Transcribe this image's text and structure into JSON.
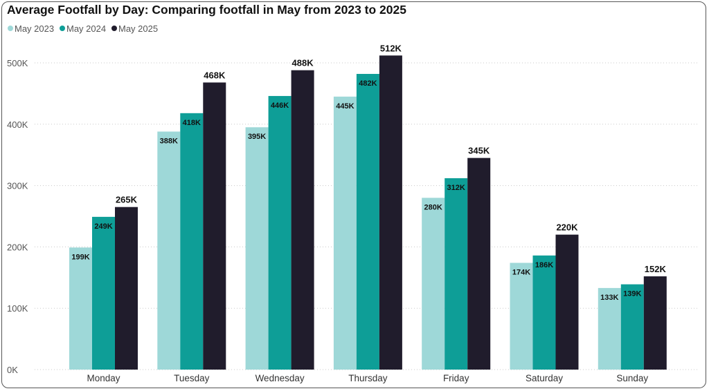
{
  "chart_data": {
    "type": "bar",
    "title": "Average Footfall by Day: Comparing footfall in May from 2023 to 2025",
    "xlabel": "",
    "ylabel": "",
    "ylim": [
      0,
      500000
    ],
    "yticks": [
      0,
      100000,
      200000,
      300000,
      400000,
      500000
    ],
    "ytick_labels": [
      "0K",
      "100K",
      "200K",
      "300K",
      "400K",
      "500K"
    ],
    "grid": true,
    "legend_position": "top-left",
    "categories": [
      "Monday",
      "Tuesday",
      "Wednesday",
      "Thursday",
      "Friday",
      "Saturday",
      "Sunday"
    ],
    "series": [
      {
        "name": "May 2023",
        "color": "#9ed8d8",
        "values": [
          199000,
          388000,
          395000,
          445000,
          280000,
          174000,
          133000
        ],
        "labels": [
          "199K",
          "388K",
          "395K",
          "445K",
          "280K",
          "174K",
          "133K"
        ]
      },
      {
        "name": "May 2024",
        "color": "#0e9e97",
        "values": [
          249000,
          418000,
          446000,
          482000,
          312000,
          186000,
          139000
        ],
        "labels": [
          "249K",
          "418K",
          "446K",
          "482K",
          "312K",
          "186K",
          "139K"
        ]
      },
      {
        "name": "May 2025",
        "color": "#201c2c",
        "values": [
          265000,
          468000,
          488000,
          512000,
          345000,
          220000,
          152000
        ],
        "labels": [
          "265K",
          "468K",
          "488K",
          "512K",
          "345K",
          "220K",
          "152K"
        ]
      }
    ]
  }
}
